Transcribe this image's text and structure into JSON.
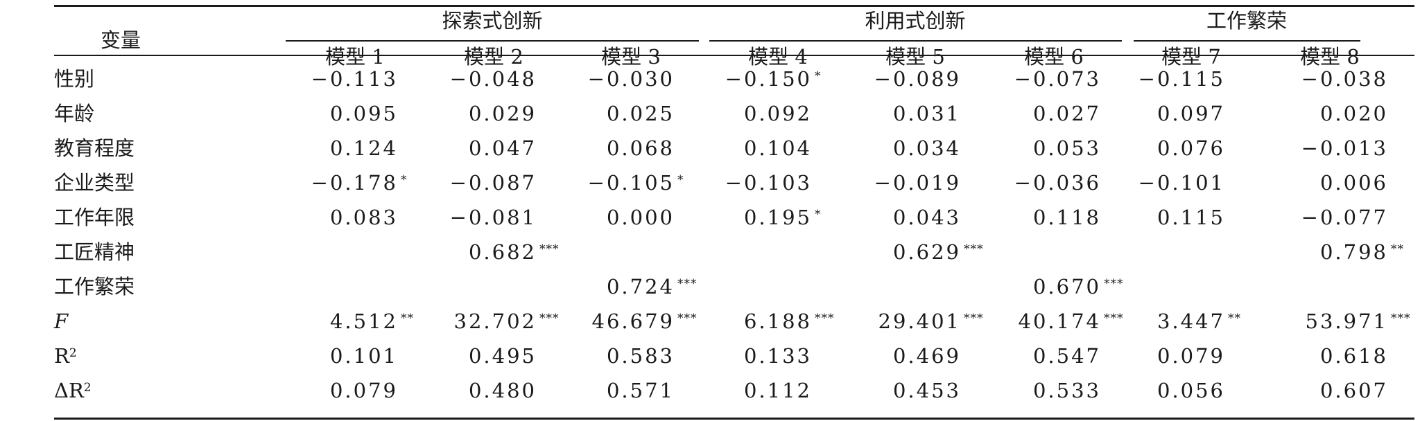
{
  "table": {
    "header": {
      "variable_label": "变量",
      "groups": [
        "探索式创新",
        "利用式创新",
        "工作繁荣"
      ],
      "models": [
        "模型 1",
        "模型 2",
        "模型 3",
        "模型 4",
        "模型 5",
        "模型 6",
        "模型 7",
        "模型 8"
      ]
    },
    "rows": [
      {
        "label": "性别",
        "cells": [
          {
            "v": "−0.113",
            "s": ""
          },
          {
            "v": "−0.048",
            "s": ""
          },
          {
            "v": "−0.030",
            "s": ""
          },
          {
            "v": "−0.150",
            "s": "*"
          },
          {
            "v": "−0.089",
            "s": ""
          },
          {
            "v": "−0.073",
            "s": ""
          },
          {
            "v": "−0.115",
            "s": ""
          },
          {
            "v": "−0.038",
            "s": ""
          }
        ]
      },
      {
        "label": "年龄",
        "cells": [
          {
            "v": "0.095",
            "s": ""
          },
          {
            "v": "0.029",
            "s": ""
          },
          {
            "v": "0.025",
            "s": ""
          },
          {
            "v": "0.092",
            "s": ""
          },
          {
            "v": "0.031",
            "s": ""
          },
          {
            "v": "0.027",
            "s": ""
          },
          {
            "v": "0.097",
            "s": ""
          },
          {
            "v": "0.020",
            "s": ""
          }
        ]
      },
      {
        "label": "教育程度",
        "cells": [
          {
            "v": "0.124",
            "s": ""
          },
          {
            "v": "0.047",
            "s": ""
          },
          {
            "v": "0.068",
            "s": ""
          },
          {
            "v": "0.104",
            "s": ""
          },
          {
            "v": "0.034",
            "s": ""
          },
          {
            "v": "0.053",
            "s": ""
          },
          {
            "v": "0.076",
            "s": ""
          },
          {
            "v": "−0.013",
            "s": ""
          }
        ]
      },
      {
        "label": "企业类型",
        "cells": [
          {
            "v": "−0.178",
            "s": "*"
          },
          {
            "v": "−0.087",
            "s": ""
          },
          {
            "v": "−0.105",
            "s": "*"
          },
          {
            "v": "−0.103",
            "s": ""
          },
          {
            "v": "−0.019",
            "s": ""
          },
          {
            "v": "−0.036",
            "s": ""
          },
          {
            "v": "−0.101",
            "s": ""
          },
          {
            "v": "0.006",
            "s": ""
          }
        ]
      },
      {
        "label": "工作年限",
        "cells": [
          {
            "v": "0.083",
            "s": ""
          },
          {
            "v": "−0.081",
            "s": ""
          },
          {
            "v": "0.000",
            "s": ""
          },
          {
            "v": "0.195",
            "s": "*"
          },
          {
            "v": "0.043",
            "s": ""
          },
          {
            "v": "0.118",
            "s": ""
          },
          {
            "v": "0.115",
            "s": ""
          },
          {
            "v": "−0.077",
            "s": ""
          }
        ]
      },
      {
        "label": "工匠精神",
        "cells": [
          {
            "v": "",
            "s": ""
          },
          {
            "v": "0.682",
            "s": "***"
          },
          {
            "v": "",
            "s": ""
          },
          {
            "v": "",
            "s": ""
          },
          {
            "v": "0.629",
            "s": "***"
          },
          {
            "v": "",
            "s": ""
          },
          {
            "v": "",
            "s": ""
          },
          {
            "v": "0.798",
            "s": "**"
          }
        ]
      },
      {
        "label": "工作繁荣",
        "cells": [
          {
            "v": "",
            "s": ""
          },
          {
            "v": "",
            "s": ""
          },
          {
            "v": "0.724",
            "s": "***"
          },
          {
            "v": "",
            "s": ""
          },
          {
            "v": "",
            "s": ""
          },
          {
            "v": "0.670",
            "s": "***"
          },
          {
            "v": "",
            "s": ""
          },
          {
            "v": "",
            "s": ""
          }
        ]
      },
      {
        "label": "F",
        "cells": [
          {
            "v": "4.512",
            "s": "**"
          },
          {
            "v": "32.702",
            "s": "***"
          },
          {
            "v": "46.679",
            "s": "***"
          },
          {
            "v": "6.188",
            "s": "***"
          },
          {
            "v": "29.401",
            "s": "***"
          },
          {
            "v": "40.174",
            "s": "***"
          },
          {
            "v": "3.447",
            "s": "**"
          },
          {
            "v": "53.971",
            "s": "***"
          }
        ]
      },
      {
        "label": "R",
        "label_sup": "2",
        "cells": [
          {
            "v": "0.101",
            "s": ""
          },
          {
            "v": "0.495",
            "s": ""
          },
          {
            "v": "0.583",
            "s": ""
          },
          {
            "v": "0.133",
            "s": ""
          },
          {
            "v": "0.469",
            "s": ""
          },
          {
            "v": "0.547",
            "s": ""
          },
          {
            "v": "0.079",
            "s": ""
          },
          {
            "v": "0.618",
            "s": ""
          }
        ]
      },
      {
        "label": "ΔR",
        "label_sup": "2",
        "cells": [
          {
            "v": "0.079",
            "s": ""
          },
          {
            "v": "0.480",
            "s": ""
          },
          {
            "v": "0.571",
            "s": ""
          },
          {
            "v": "0.112",
            "s": ""
          },
          {
            "v": "0.453",
            "s": ""
          },
          {
            "v": "0.533",
            "s": ""
          },
          {
            "v": "0.056",
            "s": ""
          },
          {
            "v": "0.607",
            "s": ""
          }
        ]
      }
    ]
  }
}
